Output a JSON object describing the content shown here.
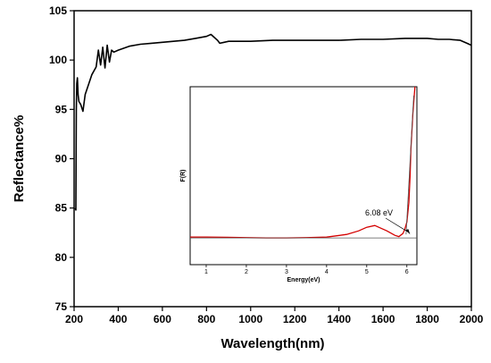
{
  "chart_data": [
    {
      "type": "line",
      "title": "",
      "xlabel": "Wavelength(nm)",
      "ylabel": "Reflectance%",
      "xlim": [
        200,
        2000
      ],
      "ylim": [
        75,
        105
      ],
      "xticks": [
        "200",
        "400",
        "600",
        "800",
        "1000",
        "1200",
        "1400",
        "1600",
        "1800",
        "2000"
      ],
      "yticks": [
        "75",
        "80",
        "85",
        "90",
        "95",
        "100",
        "105"
      ],
      "series": [
        {
          "color": "#000000",
          "x": [
            205,
            208,
            210,
            212,
            215,
            218,
            222,
            230,
            240,
            250,
            265,
            280,
            300,
            310,
            320,
            330,
            340,
            350,
            360,
            370,
            380,
            400,
            450,
            500,
            550,
            600,
            650,
            700,
            750,
            800,
            820,
            840,
            850,
            860,
            880,
            900,
            1000,
            1100,
            1200,
            1300,
            1400,
            1500,
            1600,
            1700,
            1750,
            1800,
            1850,
            1900,
            1950,
            1980,
            2000
          ],
          "y": [
            85,
            84.8,
            95,
            97.6,
            98.2,
            96.5,
            95.8,
            95.5,
            94.8,
            96.5,
            97.5,
            98.5,
            99.3,
            101,
            99.5,
            101.3,
            99.2,
            101.5,
            99.8,
            101,
            100.8,
            101,
            101.4,
            101.6,
            101.7,
            101.8,
            101.9,
            102,
            102.2,
            102.4,
            102.6,
            102.2,
            102,
            101.7,
            101.8,
            101.9,
            101.9,
            102,
            102,
            102,
            102,
            102.1,
            102.1,
            102.2,
            102.2,
            102.2,
            102.1,
            102.1,
            102,
            101.7,
            101.5
          ]
        }
      ]
    },
    {
      "type": "line",
      "title": "",
      "xlabel": "Energy(eV)",
      "ylabel": "F(R)",
      "xlim": [
        0.6,
        6.25
      ],
      "ylim": [
        0,
        1
      ],
      "xticks": [
        "1",
        "2",
        "3",
        "4",
        "5",
        "6"
      ],
      "series": [
        {
          "color": "#d40000",
          "x": [
            0.6,
            1,
            1.5,
            2,
            2.5,
            3,
            3.5,
            4,
            4.5,
            4.8,
            5.0,
            5.2,
            5.3,
            5.5,
            5.7,
            5.8,
            5.9,
            5.95,
            6.0,
            6.05,
            6.08,
            6.1,
            6.15,
            6.2
          ],
          "y": [
            0.155,
            0.155,
            0.154,
            0.152,
            0.15,
            0.15,
            0.152,
            0.155,
            0.17,
            0.19,
            0.21,
            0.22,
            0.21,
            0.19,
            0.165,
            0.158,
            0.175,
            0.2,
            0.24,
            0.35,
            0.5,
            0.65,
            0.85,
            1.0
          ]
        },
        {
          "color": "#555555",
          "x": [
            0.6,
            6.25
          ],
          "y": [
            0.15,
            0.15
          ]
        }
      ],
      "annotations": [
        {
          "text": "6.08 eV",
          "x": 6.08,
          "y": 0.17
        }
      ]
    }
  ]
}
